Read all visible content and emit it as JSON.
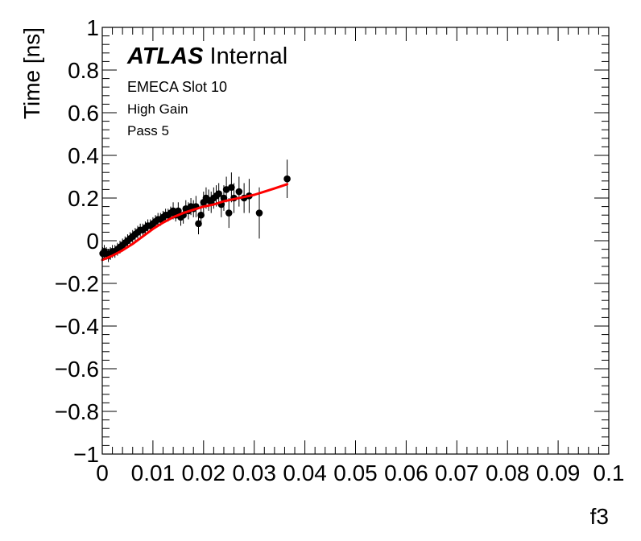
{
  "chart_data": {
    "type": "scatter",
    "xlabel": "f3",
    "ylabel": "Time [ns]",
    "xlim": [
      0,
      0.1
    ],
    "ylim": [
      -1,
      1
    ],
    "x_ticks": [
      0,
      0.01,
      0.02,
      0.03,
      0.04,
      0.05,
      0.06,
      0.07,
      0.08,
      0.09,
      0.1
    ],
    "x_tick_labels": [
      "0",
      "0.01",
      "0.02",
      "0.03",
      "0.04",
      "0.05",
      "0.06",
      "0.07",
      "0.08",
      "0.09",
      "0.1"
    ],
    "y_ticks": [
      -1,
      -0.8,
      -0.6,
      -0.4,
      -0.2,
      0,
      0.2,
      0.4,
      0.6,
      0.8,
      1
    ],
    "y_tick_labels": [
      "−1",
      "−0.8",
      "−0.6",
      "−0.4",
      "−0.2",
      "0",
      "0.2",
      "0.4",
      "0.6",
      "0.8",
      "1"
    ],
    "grid": false,
    "annotations": {
      "atlas": "ATLAS",
      "atlas_suffix": "Internal",
      "line1": "EMECA Slot 10",
      "line2": "High Gain",
      "line3": "Pass 5"
    },
    "points": {
      "x": [
        0.0001,
        0.0004,
        0.0008,
        0.0012,
        0.0016,
        0.002,
        0.0025,
        0.003,
        0.0035,
        0.004,
        0.0045,
        0.005,
        0.0055,
        0.006,
        0.0065,
        0.007,
        0.0075,
        0.008,
        0.0085,
        0.009,
        0.0095,
        0.01,
        0.0105,
        0.011,
        0.0115,
        0.012,
        0.0125,
        0.013,
        0.0135,
        0.014,
        0.0145,
        0.015,
        0.0155,
        0.016,
        0.0165,
        0.017,
        0.0175,
        0.018,
        0.0185,
        0.019,
        0.0195,
        0.02,
        0.0205,
        0.021,
        0.0215,
        0.022,
        0.0225,
        0.023,
        0.0235,
        0.024,
        0.0245,
        0.025,
        0.0255,
        0.026,
        0.027,
        0.028,
        0.029,
        0.031,
        0.0365
      ],
      "y": [
        -0.06,
        -0.05,
        -0.06,
        -0.07,
        -0.06,
        -0.05,
        -0.05,
        -0.04,
        -0.03,
        -0.02,
        -0.01,
        0.0,
        0.01,
        0.02,
        0.03,
        0.04,
        0.05,
        0.05,
        0.06,
        0.07,
        0.07,
        0.08,
        0.09,
        0.1,
        0.1,
        0.11,
        0.12,
        0.12,
        0.13,
        0.14,
        0.12,
        0.14,
        0.11,
        0.12,
        0.15,
        0.14,
        0.16,
        0.15,
        0.16,
        0.08,
        0.12,
        0.18,
        0.2,
        0.19,
        0.18,
        0.2,
        0.21,
        0.22,
        0.17,
        0.2,
        0.24,
        0.13,
        0.25,
        0.2,
        0.23,
        0.2,
        0.21,
        0.13,
        0.29
      ],
      "yerr": [
        0.03,
        0.03,
        0.03,
        0.03,
        0.03,
        0.03,
        0.03,
        0.03,
        0.03,
        0.03,
        0.03,
        0.03,
        0.03,
        0.03,
        0.03,
        0.03,
        0.03,
        0.03,
        0.03,
        0.03,
        0.03,
        0.03,
        0.03,
        0.03,
        0.03,
        0.03,
        0.03,
        0.03,
        0.03,
        0.04,
        0.03,
        0.04,
        0.04,
        0.04,
        0.04,
        0.04,
        0.04,
        0.04,
        0.05,
        0.05,
        0.05,
        0.05,
        0.05,
        0.05,
        0.05,
        0.05,
        0.05,
        0.05,
        0.06,
        0.06,
        0.06,
        0.07,
        0.07,
        0.07,
        0.07,
        0.07,
        0.08,
        0.12,
        0.09
      ],
      "color": "#000000"
    },
    "fit": {
      "x": [
        0.0,
        0.002,
        0.004,
        0.006,
        0.008,
        0.01,
        0.012,
        0.014,
        0.016,
        0.018,
        0.02,
        0.022,
        0.024,
        0.026,
        0.028,
        0.03,
        0.032,
        0.034,
        0.0365
      ],
      "y": [
        -0.09,
        -0.07,
        -0.045,
        -0.015,
        0.02,
        0.055,
        0.085,
        0.11,
        0.13,
        0.145,
        0.16,
        0.17,
        0.185,
        0.195,
        0.205,
        0.215,
        0.23,
        0.245,
        0.265
      ],
      "color": "#ff0000"
    }
  }
}
